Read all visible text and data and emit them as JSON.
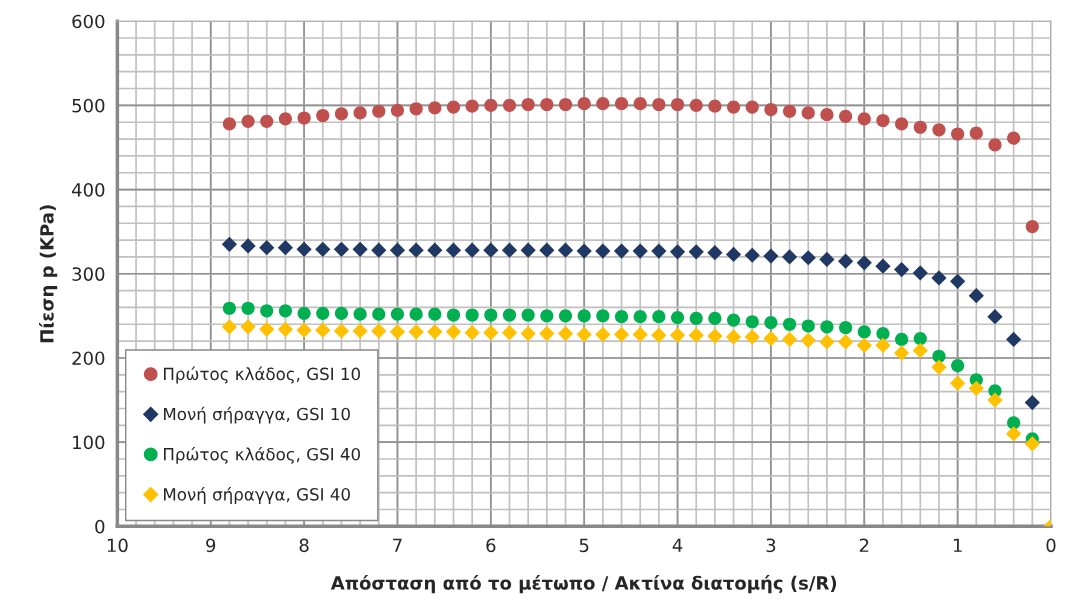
{
  "chart_data": {
    "type": "scatter",
    "xlabel": "Απόσταση από το μέτωπο / Ακτίνα διατομής (s/R)",
    "ylabel": "Πίεση p (KPa)",
    "x": [
      8.8,
      8.6,
      8.4,
      8.2,
      8.0,
      7.8,
      7.6,
      7.4,
      7.2,
      7.0,
      6.8,
      6.6,
      6.4,
      6.2,
      6.0,
      5.8,
      5.6,
      5.4,
      5.2,
      5.0,
      4.8,
      4.6,
      4.4,
      4.2,
      4.0,
      3.8,
      3.6,
      3.4,
      3.2,
      3.0,
      2.8,
      2.6,
      2.4,
      2.2,
      2.0,
      1.8,
      1.6,
      1.4,
      1.2,
      1.0,
      0.8,
      0.6,
      0.4,
      0.2,
      0
    ],
    "series": [
      {
        "name": "Πρώτος κλάδος, GSI 10",
        "color": "#c0504d",
        "marker": "circle",
        "values": [
          478,
          481,
          481,
          484,
          485,
          488,
          490,
          491,
          493,
          494,
          496,
          497,
          498,
          499,
          500,
          500,
          501,
          501,
          501,
          502,
          502,
          502,
          502,
          501,
          501,
          500,
          499,
          498,
          498,
          495,
          493,
          491,
          489,
          487,
          484,
          482,
          478,
          474,
          471,
          466,
          467,
          453,
          461,
          356,
          null
        ]
      },
      {
        "name": "Μονή σήραγγα, GSI 10",
        "color": "#1f3864",
        "marker": "diamond",
        "values": [
          335,
          333,
          331,
          331,
          329,
          329,
          329,
          329,
          328,
          328,
          328,
          328,
          328,
          328,
          328,
          328,
          328,
          328,
          328,
          327,
          327,
          327,
          327,
          327,
          326,
          326,
          325,
          323,
          322,
          321,
          320,
          319,
          317,
          315,
          313,
          309,
          305,
          301,
          295,
          291,
          274,
          249,
          222,
          147,
          null
        ]
      },
      {
        "name": "Πρώτος κλάδος, GSI 40",
        "color": "#00b050",
        "marker": "circle",
        "values": [
          259,
          259,
          256,
          256,
          253,
          253,
          253,
          252,
          252,
          252,
          252,
          252,
          251,
          251,
          251,
          251,
          251,
          250,
          250,
          250,
          250,
          249,
          249,
          249,
          248,
          247,
          247,
          245,
          243,
          242,
          240,
          238,
          237,
          236,
          231,
          229,
          222,
          223,
          202,
          191,
          174,
          161,
          123,
          104,
          null
        ]
      },
      {
        "name": "Μονή σήραγγα, GSI 40",
        "color": "#ffc000",
        "marker": "diamond",
        "values": [
          237,
          237,
          234,
          234,
          233,
          233,
          232,
          232,
          232,
          231,
          231,
          231,
          231,
          230,
          230,
          230,
          229,
          229,
          229,
          228,
          228,
          228,
          228,
          227,
          227,
          227,
          226,
          225,
          225,
          223,
          222,
          221,
          219,
          219,
          215,
          215,
          206,
          209,
          189,
          170,
          164,
          150,
          110,
          98,
          0
        ]
      }
    ],
    "xlim": [
      10,
      0
    ],
    "xticks": [
      10,
      9,
      8,
      7,
      6,
      5,
      4,
      3,
      2,
      1,
      0
    ],
    "ylim": [
      0,
      600
    ],
    "yticks": [
      0,
      100,
      200,
      300,
      400,
      500,
      600
    ],
    "grid": true,
    "legend": "bottom left"
  }
}
